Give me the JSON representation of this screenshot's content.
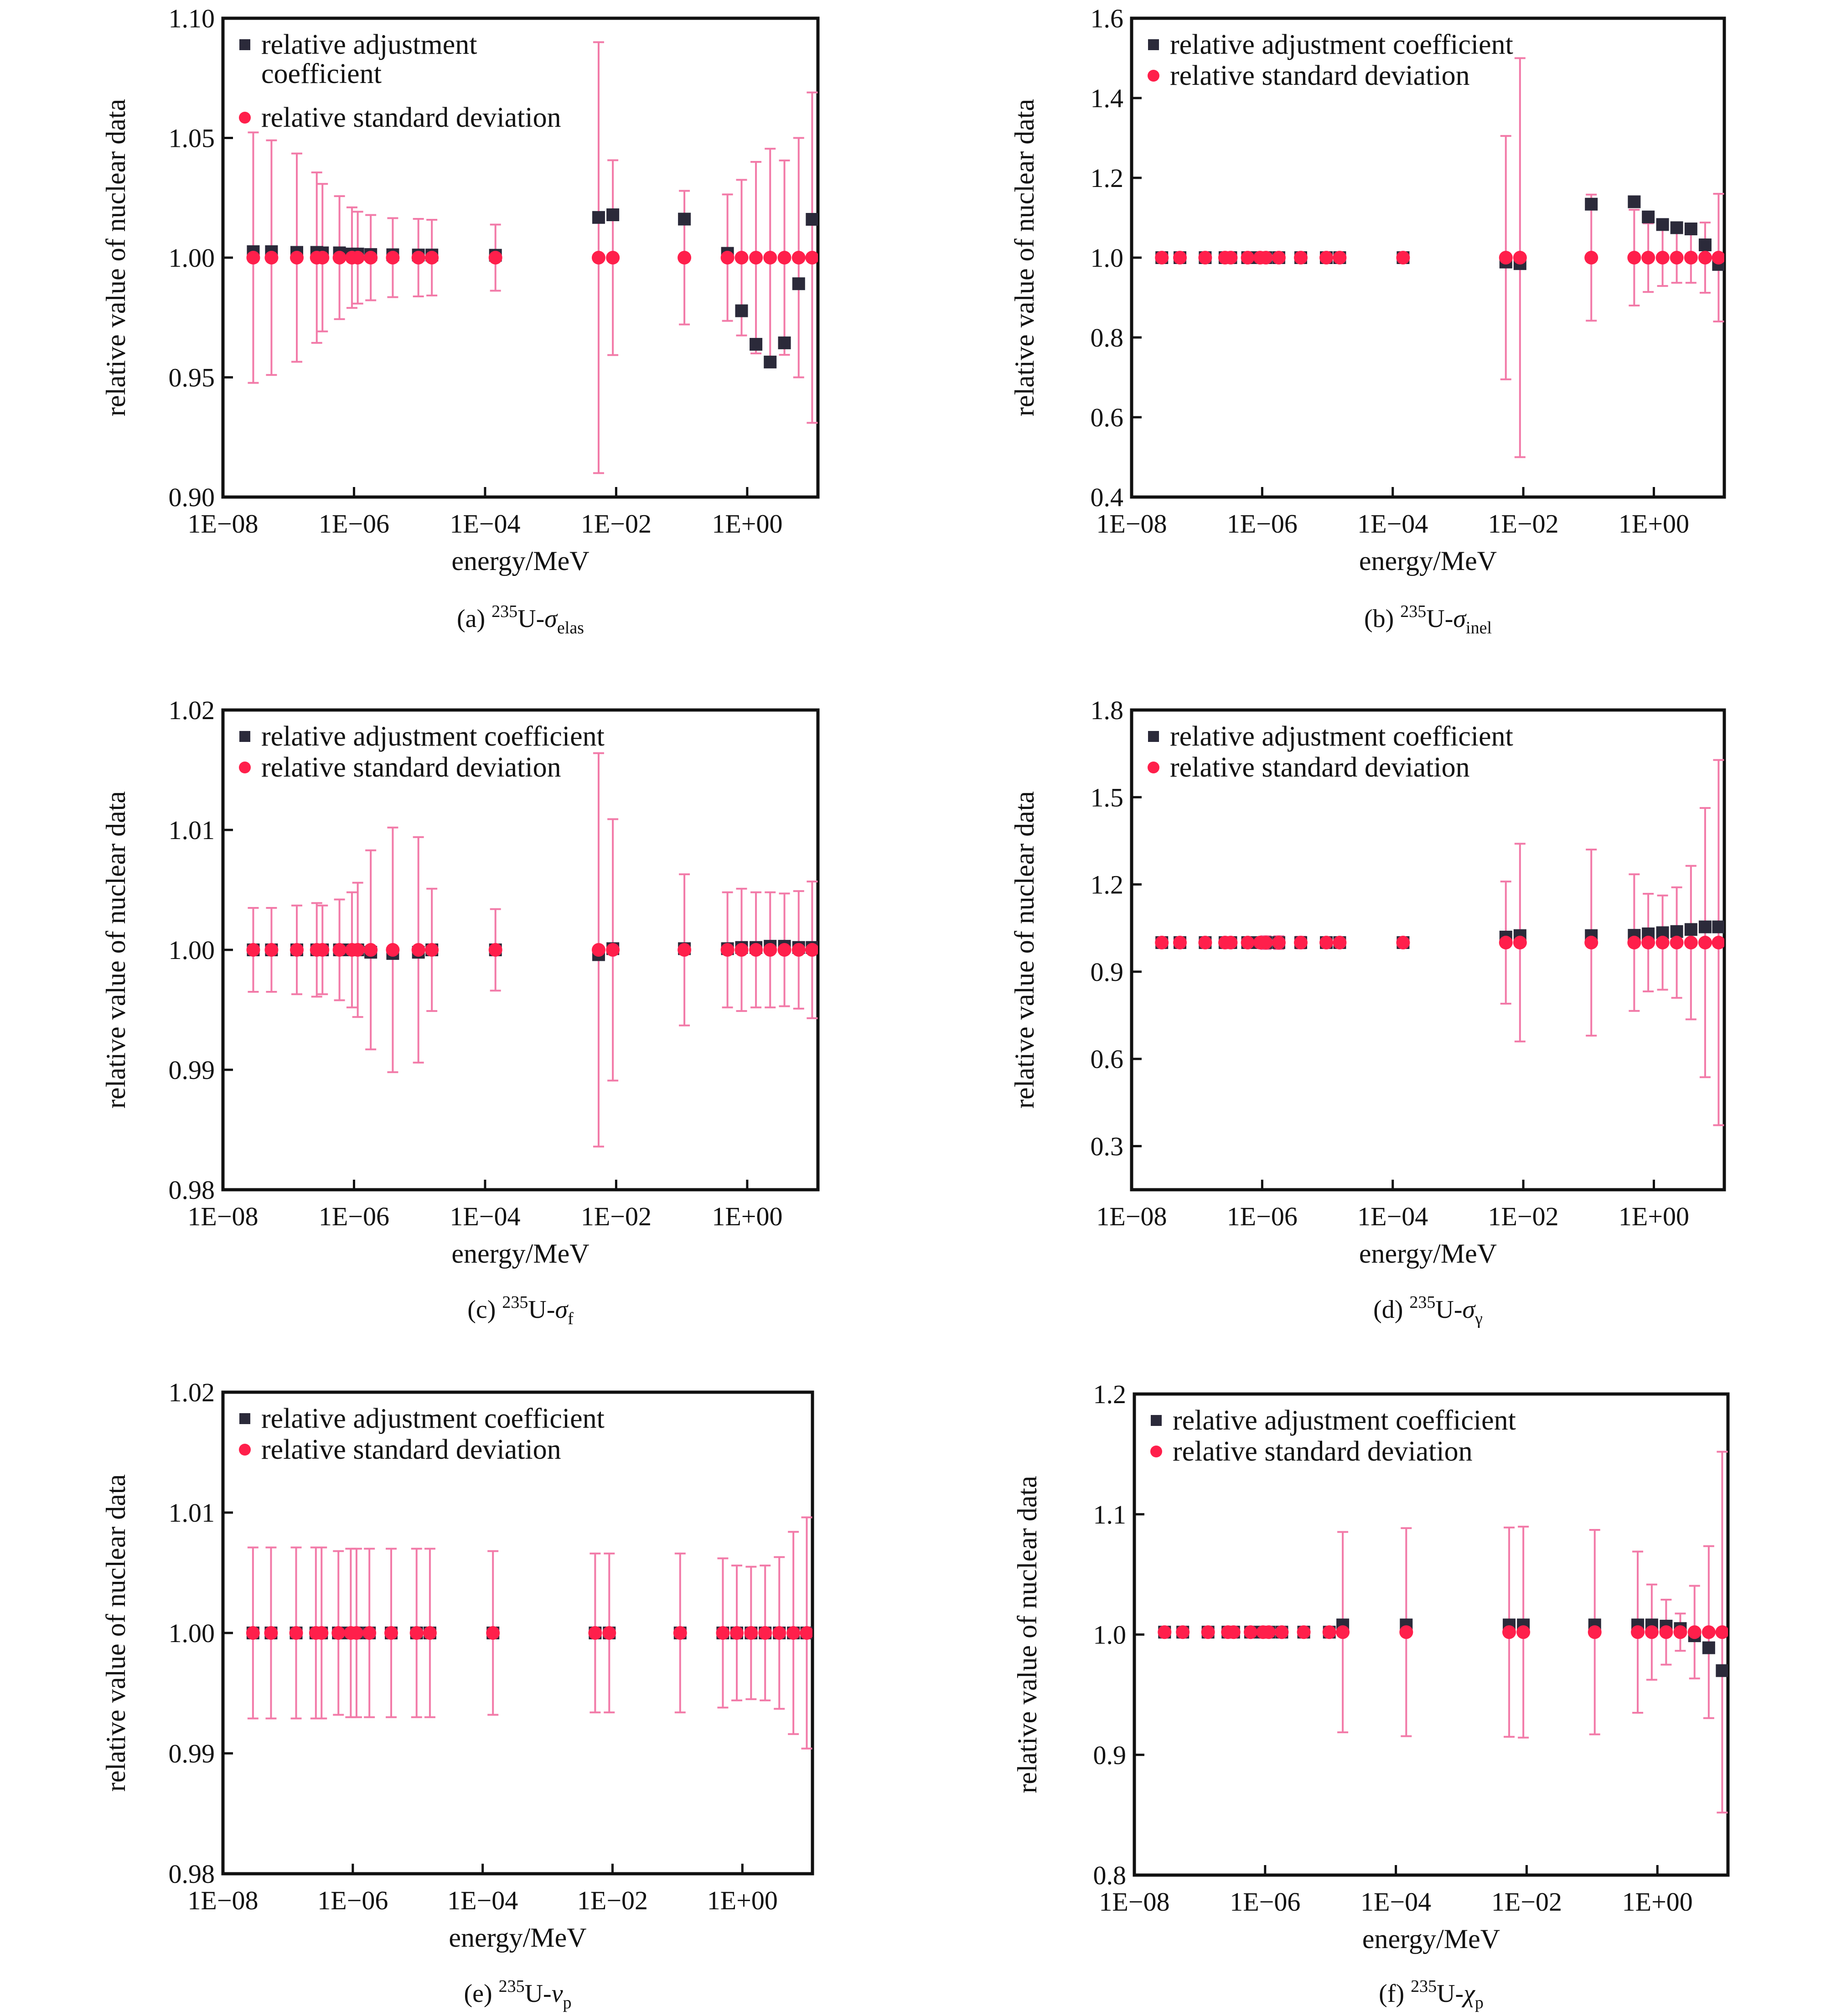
{
  "figure": {
    "colors": {
      "adjustment_marker": "#2b2a3a",
      "deviation_marker": "#ff1f4b",
      "error_bar": "#f27aa8",
      "axis": "#111111"
    },
    "legend": {
      "adjustment": "relative adjustment coefficient",
      "deviation": "relative standard deviation"
    }
  },
  "chart_data": [
    {
      "id": "a",
      "type": "scatter",
      "caption": {
        "prefix": "(a) ",
        "isotope_mass": "235",
        "element": "U-",
        "symbol": "σ",
        "subscript": "elas"
      },
      "xlabel": "energy/MeV",
      "ylabel": "relative value of nuclear data",
      "xscale": "log",
      "xlim": [
        1e-08,
        12
      ],
      "ylim": [
        0.9,
        1.1
      ],
      "xticks": [
        "1E−08",
        "1E−06",
        "1E−04",
        "1E−02",
        "1E+00"
      ],
      "xtick_values": [
        1e-08,
        1e-06,
        0.0001,
        0.01,
        1
      ],
      "yticks": [
        "0.90",
        "0.95",
        "1.00",
        "1.05",
        "1.10"
      ],
      "ytick_values": [
        0.9,
        0.95,
        1.0,
        1.05,
        1.1
      ],
      "legend_position": "top-left",
      "legend_wrap_adjustment": true,
      "energy": [
        2.9e-08,
        5.5e-08,
        1.34e-07,
        2.7e-07,
        3.3e-07,
        6e-07,
        9.3e-07,
        1.14e-06,
        1.8e-06,
        3.9e-06,
        9.6e-06,
        1.54e-05,
        0.000144,
        0.0054,
        0.0089,
        0.11,
        0.5,
        0.82,
        1.36,
        2.24,
        3.7,
        6.1,
        9.8
      ],
      "series": [
        {
          "name": "relative adjustment coefficient",
          "marker": "square",
          "values": [
            1.0025,
            1.0025,
            1.0022,
            1.0022,
            1.002,
            1.002,
            1.0015,
            1.0015,
            1.0013,
            1.0012,
            1.0011,
            1.0011,
            1.001,
            1.0168,
            1.0179,
            1.0161,
            1.0018,
            0.9778,
            0.9638,
            0.9564,
            0.9644,
            0.9891,
            1.016
          ]
        },
        {
          "name": "relative standard deviation",
          "marker": "circle",
          "values": [
            1,
            1,
            1,
            1,
            1,
            1,
            1,
            1,
            1,
            1,
            1,
            1,
            1,
            1,
            1,
            1,
            1,
            1,
            1,
            1,
            1,
            1,
            1
          ],
          "error": [
            0.0523,
            0.049,
            0.0435,
            0.0356,
            0.0308,
            0.0257,
            0.021,
            0.0192,
            0.0178,
            0.0165,
            0.0162,
            0.0158,
            0.0138,
            0.09,
            0.0407,
            0.0279,
            0.0264,
            0.0325,
            0.04,
            0.0455,
            0.0406,
            0.05,
            0.069
          ]
        }
      ]
    },
    {
      "id": "b",
      "type": "scatter",
      "caption": {
        "prefix": "(b) ",
        "isotope_mass": "235",
        "element": "U-",
        "symbol": "σ",
        "subscript": "inel"
      },
      "xlabel": "energy/MeV",
      "ylabel": "relative value of nuclear data",
      "xscale": "log",
      "xlim": [
        1e-08,
        12
      ],
      "ylim": [
        0.4,
        1.6
      ],
      "xticks": [
        "1E−08",
        "1E−06",
        "1E−04",
        "1E−02",
        "1E+00"
      ],
      "xtick_values": [
        1e-08,
        1e-06,
        0.0001,
        0.01,
        1
      ],
      "yticks": [
        "0.4",
        "0.6",
        "0.8",
        "1.0",
        "1.2",
        "1.4",
        "1.6"
      ],
      "ytick_values": [
        0.4,
        0.6,
        0.8,
        1.0,
        1.2,
        1.4,
        1.6
      ],
      "legend_position": "top-left",
      "legend_wrap_adjustment": false,
      "energy": [
        2.9e-08,
        5.5e-08,
        1.34e-07,
        2.7e-07,
        3.3e-07,
        6e-07,
        9.3e-07,
        1.14e-06,
        1.8e-06,
        3.9e-06,
        9.6e-06,
        1.54e-05,
        0.000144,
        0.0054,
        0.0089,
        0.11,
        0.5,
        0.82,
        1.36,
        2.24,
        3.7,
        6.1,
        9.8
      ],
      "series": [
        {
          "name": "relative adjustment coefficient",
          "marker": "square",
          "values": [
            1,
            1,
            1,
            1,
            1,
            1,
            1,
            1,
            1,
            1,
            1,
            1,
            1,
            0.989,
            0.985,
            1.134,
            1.14,
            1.102,
            1.083,
            1.075,
            1.072,
            1.032,
            0.983
          ]
        },
        {
          "name": "relative standard deviation",
          "marker": "circle",
          "values": [
            1,
            1,
            1,
            1,
            1,
            1,
            1,
            1,
            1,
            1,
            1,
            1,
            1,
            1,
            1,
            1,
            1,
            1,
            1,
            1,
            1,
            1,
            1
          ],
          "error": [
            0,
            0,
            0,
            0,
            0,
            0,
            0,
            0,
            0,
            0,
            0,
            0,
            0,
            0.305,
            0.5,
            0.158,
            0.12,
            0.086,
            0.071,
            0.063,
            0.063,
            0.088,
            0.16
          ]
        }
      ]
    },
    {
      "id": "c",
      "type": "scatter",
      "caption": {
        "prefix": "(c) ",
        "isotope_mass": "235",
        "element": "U-",
        "symbol": "σ",
        "subscript": "f"
      },
      "xlabel": "energy/MeV",
      "ylabel": "relative value of nuclear data",
      "xscale": "log",
      "xlim": [
        1e-08,
        12
      ],
      "ylim": [
        0.98,
        1.02
      ],
      "xticks": [
        "1E−08",
        "1E−06",
        "1E−04",
        "1E−02",
        "1E+00"
      ],
      "xtick_values": [
        1e-08,
        1e-06,
        0.0001,
        0.01,
        1
      ],
      "yticks": [
        "0.98",
        "0.99",
        "1.00",
        "1.01",
        "1.02"
      ],
      "ytick_values": [
        0.98,
        0.99,
        1.0,
        1.01,
        1.02
      ],
      "legend_position": "top-left",
      "legend_wrap_adjustment": false,
      "energy": [
        2.9e-08,
        5.5e-08,
        1.34e-07,
        2.7e-07,
        3.3e-07,
        6e-07,
        9.3e-07,
        1.14e-06,
        1.8e-06,
        3.9e-06,
        9.6e-06,
        1.54e-05,
        0.000144,
        0.0054,
        0.0089,
        0.11,
        0.5,
        0.82,
        1.36,
        2.24,
        3.7,
        6.1,
        9.8
      ],
      "series": [
        {
          "name": "relative adjustment coefficient",
          "marker": "square",
          "values": [
            1.0,
            1.0,
            1.0,
            1.0,
            1.0,
            1.0,
            1.0,
            1.0,
            0.9998,
            0.9997,
            0.9998,
            1.0,
            1.0,
            0.9996,
            1.0001,
            1.0001,
            1.0001,
            1.0002,
            1.0002,
            1.0003,
            1.0003,
            1.0002,
            1.0002
          ]
        },
        {
          "name": "relative standard deviation",
          "marker": "circle",
          "values": [
            1,
            1,
            1,
            1,
            1,
            1,
            1,
            1,
            1,
            1,
            1,
            1,
            1,
            1,
            1,
            1,
            1,
            1,
            1,
            1,
            1,
            1,
            1
          ],
          "error": [
            0.0035,
            0.0035,
            0.0037,
            0.0039,
            0.0037,
            0.0042,
            0.0048,
            0.0056,
            0.0083,
            0.0102,
            0.0094,
            0.0051,
            0.0034,
            0.0164,
            0.0109,
            0.0063,
            0.0048,
            0.0051,
            0.0048,
            0.0048,
            0.0047,
            0.0049,
            0.0057
          ]
        }
      ]
    },
    {
      "id": "d",
      "type": "scatter",
      "caption": {
        "prefix": "(d) ",
        "isotope_mass": "235",
        "element": "U-",
        "symbol": "σ",
        "subscript": "γ"
      },
      "xlabel": "energy/MeV",
      "ylabel": "relative value of nuclear data",
      "xscale": "log",
      "xlim": [
        1e-08,
        12
      ],
      "ylim": [
        0.15,
        1.8
      ],
      "xticks": [
        "1E−08",
        "1E−06",
        "1E−04",
        "1E−02",
        "1E+00"
      ],
      "xtick_values": [
        1e-08,
        1e-06,
        0.0001,
        0.01,
        1
      ],
      "yticks": [
        "0.3",
        "0.6",
        "0.9",
        "1.2",
        "1.5",
        "1.8"
      ],
      "ytick_values": [
        0.3,
        0.6,
        0.9,
        1.2,
        1.5,
        1.8
      ],
      "legend_position": "top-left",
      "legend_wrap_adjustment": false,
      "energy": [
        2.9e-08,
        5.5e-08,
        1.34e-07,
        2.7e-07,
        3.3e-07,
        6e-07,
        9.3e-07,
        1.14e-06,
        1.8e-06,
        3.9e-06,
        9.6e-06,
        1.54e-05,
        0.000144,
        0.0054,
        0.0089,
        0.11,
        0.5,
        0.82,
        1.36,
        2.24,
        3.7,
        6.1,
        9.8
      ],
      "series": [
        {
          "name": "relative adjustment coefficient",
          "marker": "square",
          "values": [
            1,
            1,
            1,
            1,
            1,
            1,
            1,
            1,
            1,
            1,
            1,
            1,
            1,
            1.019,
            1.024,
            1.024,
            1.025,
            1.03,
            1.034,
            1.038,
            1.045,
            1.054,
            1.054
          ]
        },
        {
          "name": "relative standard deviation",
          "marker": "circle",
          "values": [
            1,
            1,
            1,
            1,
            1,
            1,
            1,
            1,
            1,
            1,
            1,
            1,
            1,
            1,
            1,
            1,
            1,
            1,
            1,
            1,
            1,
            1,
            1
          ],
          "error": [
            0,
            0,
            0,
            0,
            0,
            0,
            0.017,
            0.022,
            0.022,
            0.02,
            0,
            0,
            0,
            0.21,
            0.34,
            0.32,
            0.235,
            0.168,
            0.162,
            0.19,
            0.264,
            0.463,
            0.628
          ]
        }
      ]
    },
    {
      "id": "e",
      "type": "scatter",
      "caption": {
        "prefix": "(e) ",
        "isotope_mass": "235",
        "element": "U-",
        "symbol": "ν",
        "subscript": "p"
      },
      "xlabel": "energy/MeV",
      "ylabel": "relative value of nuclear data",
      "xscale": "log",
      "xlim": [
        1e-08,
        12
      ],
      "ylim": [
        0.98,
        1.02
      ],
      "xticks": [
        "1E−08",
        "1E−06",
        "1E−04",
        "1E−02",
        "1E+00"
      ],
      "xtick_values": [
        1e-08,
        1e-06,
        0.0001,
        0.01,
        1
      ],
      "yticks": [
        "0.98",
        "0.99",
        "1.00",
        "1.01",
        "1.02"
      ],
      "ytick_values": [
        0.98,
        0.99,
        1.0,
        1.01,
        1.02
      ],
      "legend_position": "top-left",
      "legend_wrap_adjustment": false,
      "energy": [
        2.9e-08,
        5.5e-08,
        1.34e-07,
        2.7e-07,
        3.3e-07,
        6e-07,
        9.3e-07,
        1.14e-06,
        1.8e-06,
        3.9e-06,
        9.6e-06,
        1.54e-05,
        0.000144,
        0.0054,
        0.0089,
        0.11,
        0.5,
        0.82,
        1.36,
        2.24,
        3.7,
        6.1,
        9.8
      ],
      "series": [
        {
          "name": "relative adjustment coefficient",
          "marker": "square",
          "values": [
            1,
            1,
            1,
            1,
            1,
            1,
            1,
            1,
            1,
            1,
            1,
            1,
            1,
            1,
            1,
            1,
            1,
            1,
            1,
            1,
            1,
            1,
            1
          ]
        },
        {
          "name": "relative standard deviation",
          "marker": "circle",
          "values": [
            1,
            1,
            1,
            1,
            1,
            1,
            1,
            1,
            1,
            1,
            1,
            1,
            1,
            1,
            1,
            1,
            1,
            1,
            1,
            1,
            1,
            1,
            1
          ],
          "error": [
            0.0071,
            0.0071,
            0.0071,
            0.0071,
            0.0071,
            0.0068,
            0.007,
            0.007,
            0.007,
            0.007,
            0.007,
            0.007,
            0.0068,
            0.0066,
            0.0066,
            0.0066,
            0.0062,
            0.0056,
            0.0055,
            0.0056,
            0.0063,
            0.0084,
            0.0096
          ]
        }
      ]
    },
    {
      "id": "f",
      "type": "scatter",
      "caption": {
        "prefix": "(f) ",
        "isotope_mass": "235",
        "element": "U-",
        "symbol": "χ",
        "subscript": "p"
      },
      "xlabel": "energy/MeV",
      "ylabel": "relative value of nuclear data",
      "xscale": "log",
      "xlim": [
        1e-08,
        12
      ],
      "ylim": [
        0.8,
        1.2
      ],
      "xticks": [
        "1E−08",
        "1E−06",
        "1E−04",
        "1E−02",
        "1E+00"
      ],
      "xtick_values": [
        1e-08,
        1e-06,
        0.0001,
        0.01,
        1
      ],
      "yticks": [
        "0.8",
        "0.9",
        "1.0",
        "1.1",
        "1.2"
      ],
      "ytick_values": [
        0.8,
        0.9,
        1.0,
        1.1,
        1.2
      ],
      "legend_position": "top-left",
      "legend_wrap_adjustment": false,
      "energy": [
        2.9e-08,
        5.5e-08,
        1.34e-07,
        2.7e-07,
        3.3e-07,
        6e-07,
        9.3e-07,
        1.14e-06,
        1.8e-06,
        3.9e-06,
        9.6e-06,
        1.54e-05,
        0.000144,
        0.0054,
        0.0089,
        0.11,
        0.5,
        0.82,
        1.36,
        2.24,
        3.7,
        6.1,
        9.8
      ],
      "series": [
        {
          "name": "relative adjustment coefficient",
          "marker": "square",
          "values": [
            1.002,
            1.002,
            1.002,
            1.002,
            1.002,
            1.002,
            1.002,
            1.002,
            1.002,
            1.002,
            1.002,
            1.008,
            1.008,
            1.008,
            1.008,
            1.008,
            1.008,
            1.008,
            1.007,
            1.005,
            0.999,
            0.989,
            0.97
          ]
        },
        {
          "name": "relative standard deviation",
          "marker": "circle",
          "values": [
            1.002,
            1.002,
            1.002,
            1.002,
            1.002,
            1.002,
            1.002,
            1.002,
            1.002,
            1.002,
            1.002,
            1.002,
            1.002,
            1.002,
            1.002,
            1.002,
            1.002,
            1.002,
            1.002,
            1.002,
            1.002,
            1.002,
            1.002
          ],
          "error": [
            0,
            0,
            0,
            0,
            0,
            0,
            0,
            0,
            0,
            0,
            0,
            0.0833,
            0.0865,
            0.087,
            0.0877,
            0.085,
            0.067,
            0.0396,
            0.027,
            0.0155,
            0.0385,
            0.0715,
            0.15
          ]
        }
      ]
    }
  ]
}
